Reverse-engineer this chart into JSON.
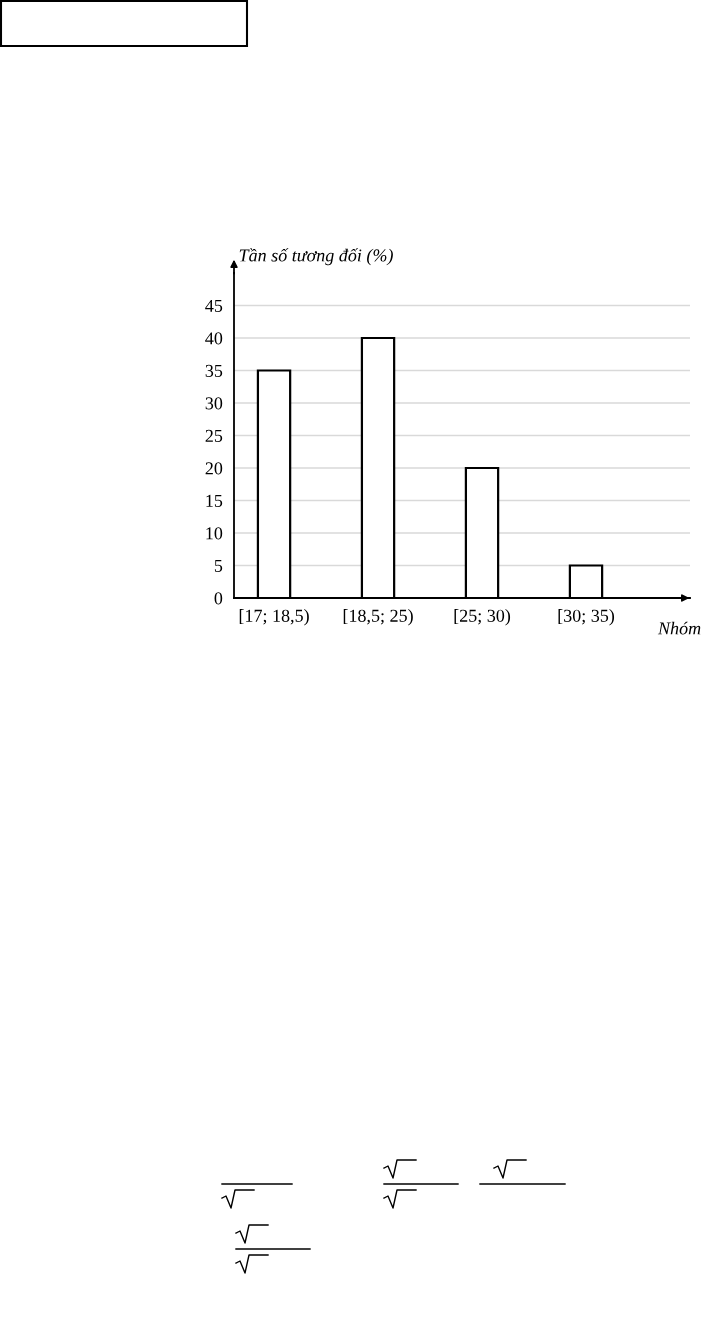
{
  "chart_data": {
    "type": "bar",
    "ylabel": "Tần số tương đối (%)",
    "xlabel": "Nhóm",
    "categories": [
      "[17; 18,5)",
      "[18,5; 25)",
      "[25; 30)",
      "[30; 35)"
    ],
    "values": [
      35,
      40,
      20,
      5
    ],
    "color": "#ffffff",
    "ylim": [
      0,
      50
    ],
    "yticks": [
      0,
      5,
      10,
      15,
      20,
      25,
      30,
      35,
      40,
      45
    ],
    "grid": "y"
  }
}
